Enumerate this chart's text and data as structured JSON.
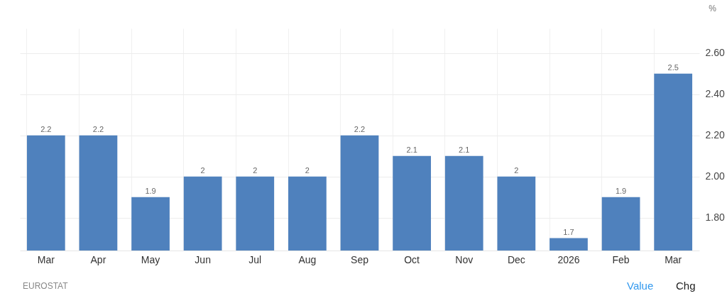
{
  "chart_data": {
    "type": "bar",
    "ylabel": "%",
    "categories": [
      "Mar",
      "Apr",
      "May",
      "Jun",
      "Jul",
      "Aug",
      "Sep",
      "Oct",
      "Nov",
      "Dec",
      "2026",
      "Feb",
      "Mar"
    ],
    "values": [
      2.2,
      2.2,
      1.9,
      2,
      2,
      2,
      2.2,
      2.1,
      2.1,
      2,
      1.7,
      1.9,
      2.5
    ],
    "color": "#4f81bd",
    "ylim": [
      1.64,
      2.72
    ],
    "yticks": [
      {
        "value": 1.8,
        "label": "1.80"
      },
      {
        "value": 2,
        "label": "2.00"
      },
      {
        "value": 2.2,
        "label": "2.20"
      },
      {
        "value": 2.4,
        "label": "2.40"
      },
      {
        "value": 2.6,
        "label": "2.60"
      }
    ],
    "grid": true,
    "data_labels": true,
    "annotations": [
      "EUROSTAT",
      "Value",
      "Chg"
    ]
  }
}
